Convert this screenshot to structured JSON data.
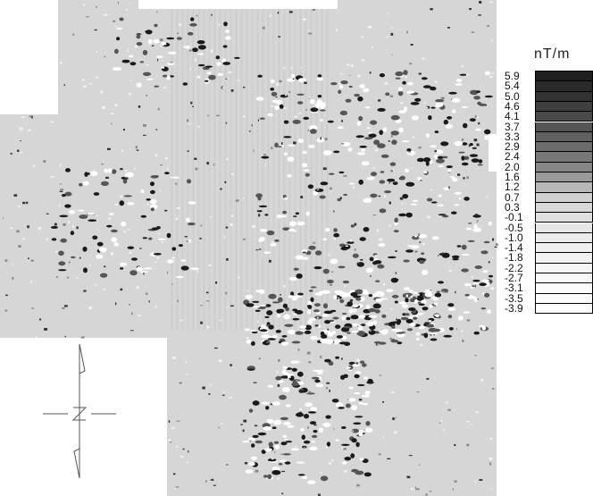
{
  "legend": {
    "unit": "nT/m",
    "labels": [
      "5.9",
      "5.4",
      "5.0",
      "4.6",
      "4.1",
      "3.7",
      "3.3",
      "2.9",
      "2.4",
      "2.0",
      "1.6",
      "1.2",
      "0.7",
      "0.3",
      "-0.1",
      "-0.5",
      "-1.0",
      "-1.4",
      "-1.8",
      "-2.2",
      "-2.7",
      "-3.1",
      "-3.5",
      "-3.9"
    ],
    "colors": [
      "#1e1e1e",
      "#2a2a2a",
      "#333333",
      "#3f3f3f",
      "#4a4a4a",
      "#555555",
      "#606060",
      "#6c6c6c",
      "#787878",
      "#868686",
      "#9a9a9a",
      "#b8b8b8",
      "#cfcfcf",
      "#d8d8d8",
      "#e0e0e0",
      "#e6e6e6",
      "#ebebeb",
      "#efefef",
      "#f2f2f2",
      "#f5f5f5",
      "#f8f8f8",
      "#fafafa",
      "#fcfcfc",
      "#ffffff"
    ]
  },
  "map": {
    "background": "#d6d6d6",
    "north_arrow": "north-arrow"
  }
}
